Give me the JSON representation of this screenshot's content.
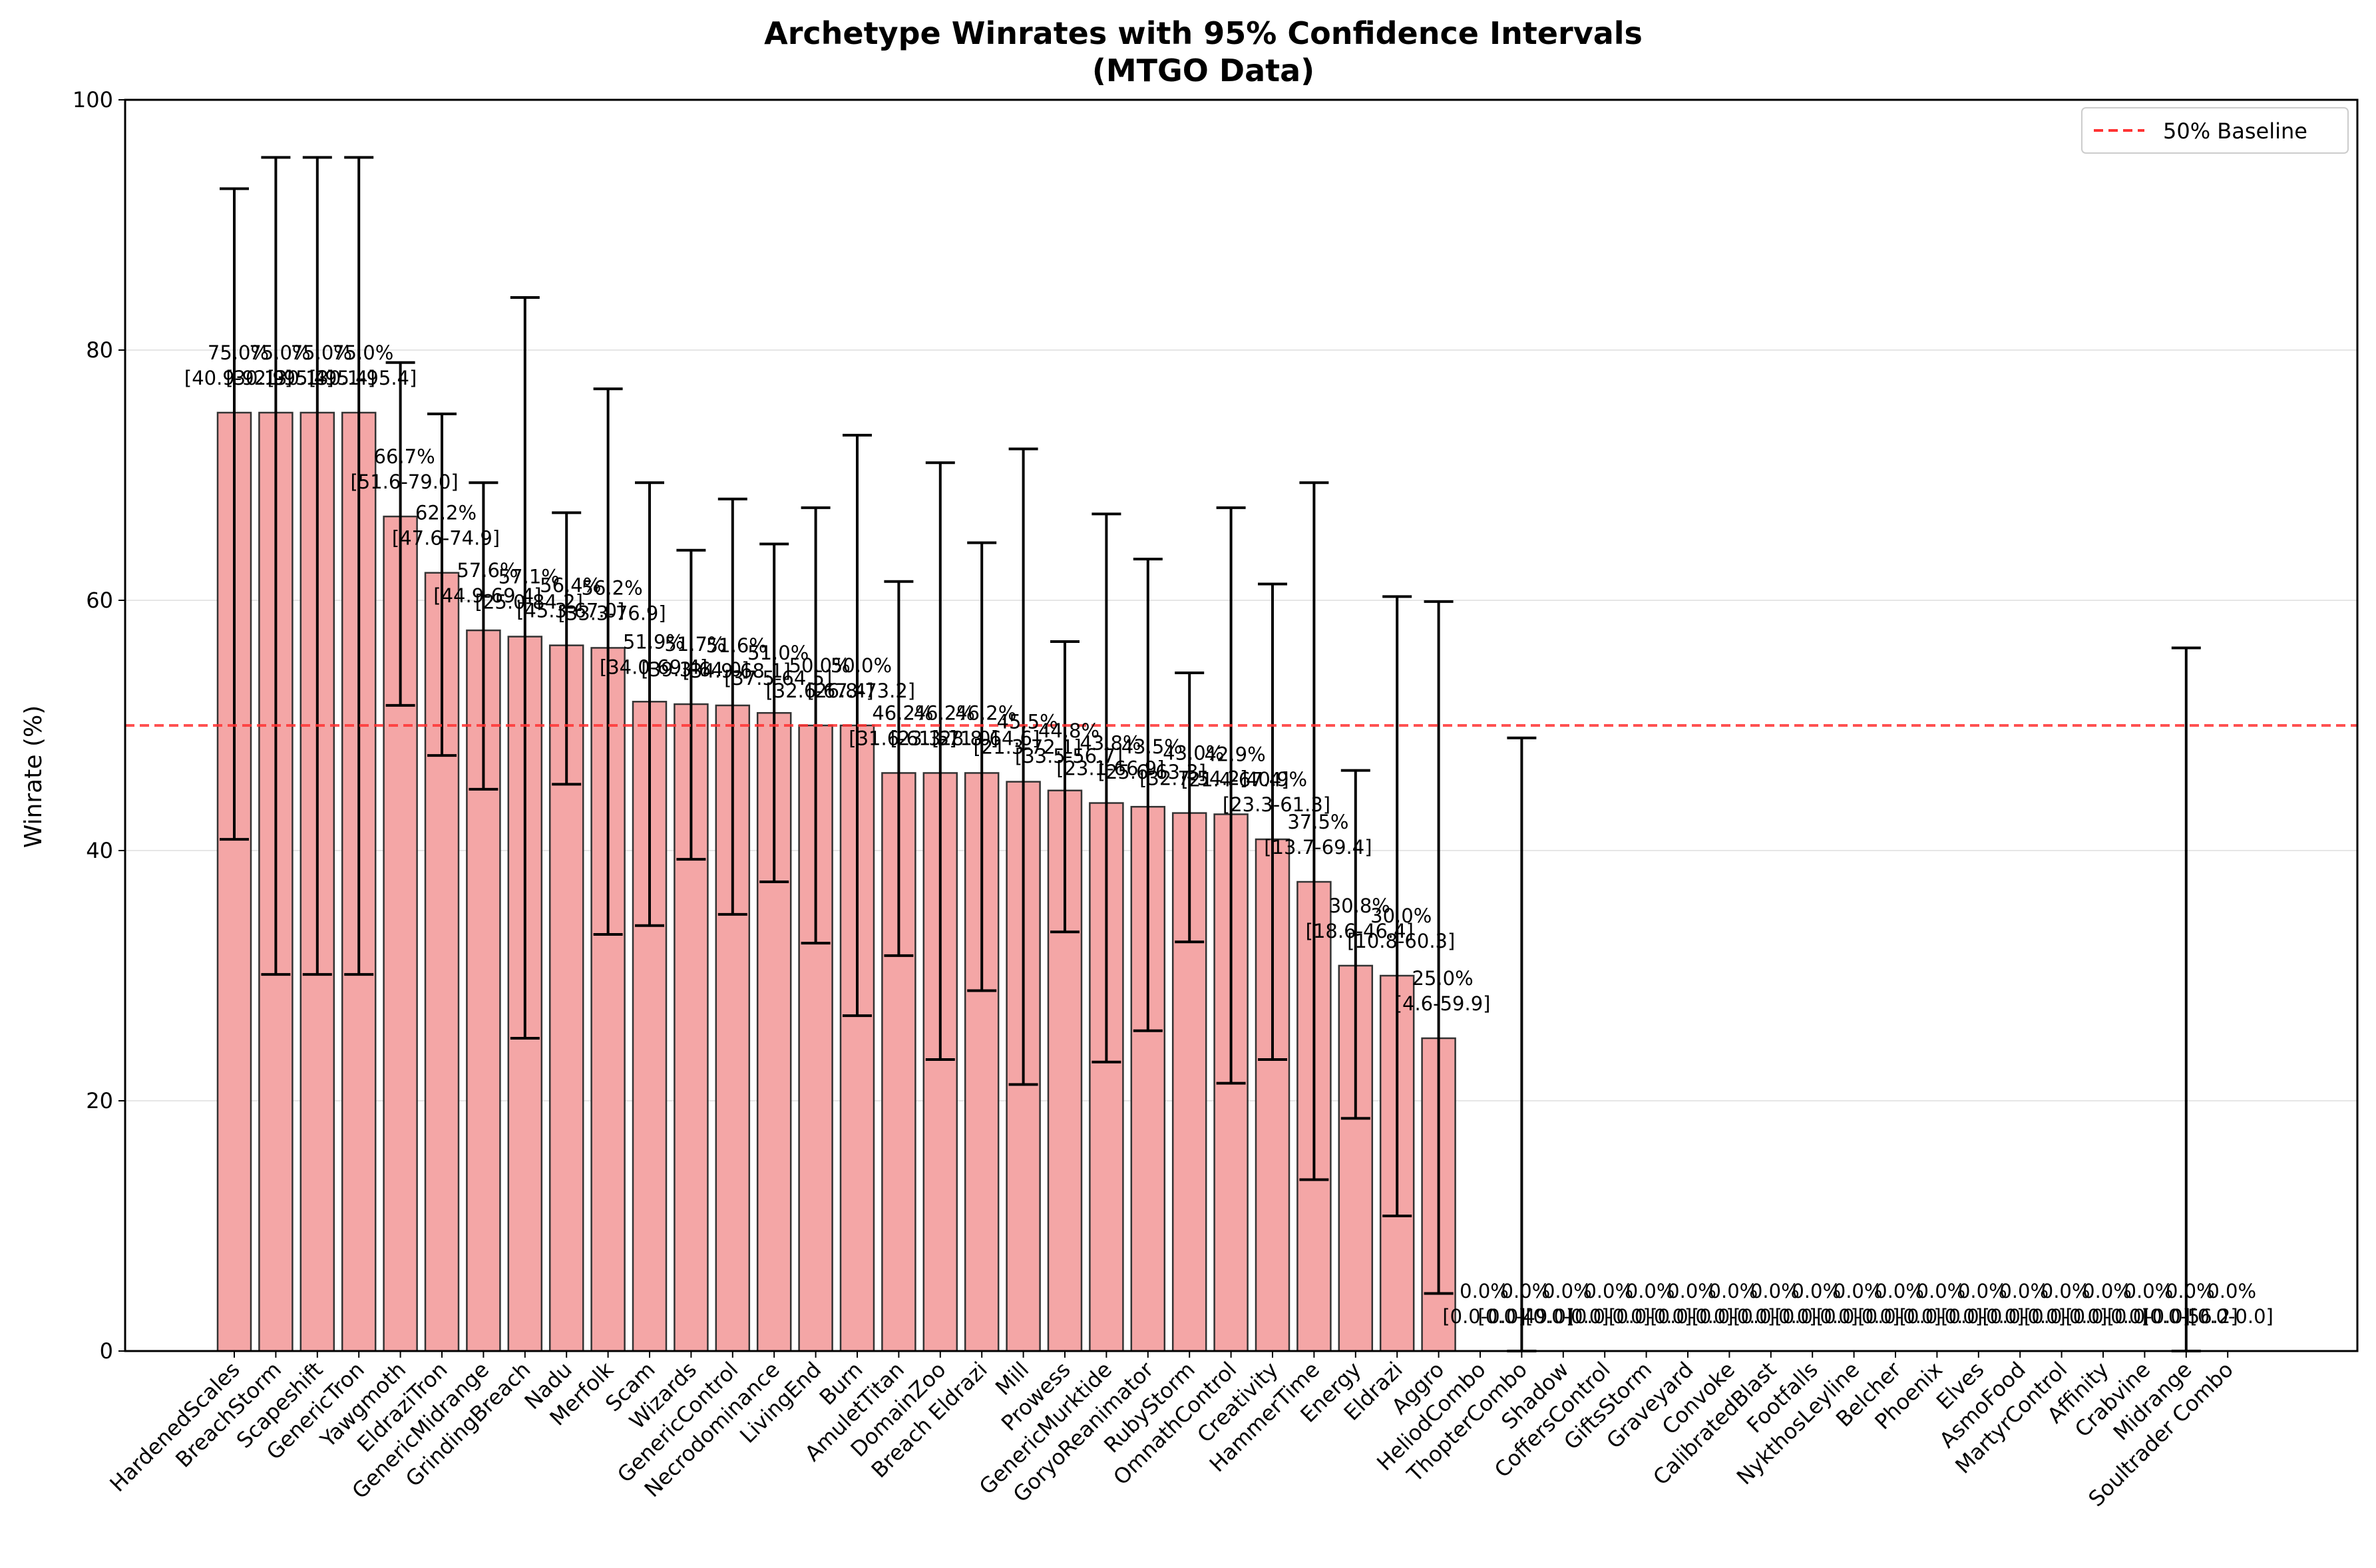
{
  "chart_data": {
    "type": "bar",
    "title": "Archetype Winrates with 95% Confidence Intervals",
    "subtitle": "(MTGO Data)",
    "xlabel": "",
    "ylabel": "Winrate (%)",
    "ylim": [
      0,
      100
    ],
    "yticks": [
      "0",
      "20",
      "40",
      "60",
      "80",
      "100"
    ],
    "grid": "horizontal",
    "legend_position": "top-right",
    "baseline": {
      "value": 50,
      "label": "50% Baseline",
      "color": "#ff3333",
      "style": "dashed"
    },
    "colors": {
      "bar_fill": "#f4a6a6",
      "bar_edge": "#333333",
      "error_bar": "#000000",
      "grid": "#e6e6e6"
    },
    "categories": [
      "HardenedScales",
      "BreachStorm",
      "Scapeshift",
      "GenericTron",
      "Yawgmoth",
      "EldraziTron",
      "GenericMidrange",
      "GrindingBreach",
      "Nadu",
      "Merfolk",
      "Scam",
      "Wizards",
      "GenericControl",
      "Necrodominance",
      "LivingEnd",
      "Burn",
      "AmuletTitan",
      "DomainZoo",
      "Breach Eldrazi",
      "Mill",
      "Prowess",
      "GenericMurktide",
      "GoryoReanimator",
      "RubyStorm",
      "OmnathControl",
      "Creativity",
      "HammerTime",
      "Energy",
      "Eldrazi",
      "Aggro",
      "HeliodCombo",
      "ThopterCombo",
      "Shadow",
      "CoffersControl",
      "GiftsStorm",
      "Graveyard",
      "Convoke",
      "CalibratedBlast",
      "Footfalls",
      "NykthosLeyline",
      "Belcher",
      "Phoenix",
      "Elves",
      "AsmoFood",
      "MartyrControl",
      "Affinity",
      "Crabvine",
      "Midrange",
      "Soultrader Combo"
    ],
    "values": [
      75.0,
      75.0,
      75.0,
      75.0,
      66.7,
      62.2,
      57.6,
      57.1,
      56.4,
      56.2,
      51.9,
      51.7,
      51.6,
      51.0,
      50.0,
      50.0,
      46.2,
      46.2,
      46.2,
      45.5,
      44.8,
      43.8,
      43.5,
      43.0,
      42.9,
      40.9,
      37.5,
      30.8,
      30.0,
      25.0,
      0.0,
      0.0,
      0.0,
      0.0,
      0.0,
      0.0,
      0.0,
      0.0,
      0.0,
      0.0,
      0.0,
      0.0,
      0.0,
      0.0,
      0.0,
      0.0,
      0.0,
      0.0,
      0.0
    ],
    "ci_low": [
      40.9,
      30.1,
      30.1,
      30.1,
      51.6,
      47.6,
      44.9,
      25.0,
      45.3,
      33.3,
      34.0,
      39.3,
      34.9,
      37.5,
      32.6,
      26.8,
      31.6,
      23.3,
      28.8,
      21.3,
      33.5,
      23.1,
      25.6,
      32.7,
      21.4,
      23.3,
      13.7,
      18.6,
      10.8,
      4.6,
      0.0,
      0.0,
      0.0,
      0.0,
      0.0,
      0.0,
      0.0,
      0.0,
      0.0,
      0.0,
      0.0,
      0.0,
      0.0,
      0.0,
      0.0,
      0.0,
      0.0,
      0.0,
      0.0
    ],
    "ci_high": [
      92.9,
      95.4,
      95.4,
      95.4,
      79.0,
      74.9,
      69.4,
      84.2,
      67.0,
      76.9,
      69.4,
      64.0,
      68.1,
      64.5,
      67.4,
      73.2,
      61.5,
      71.0,
      64.6,
      72.1,
      56.7,
      66.9,
      63.3,
      54.2,
      67.4,
      61.3,
      69.4,
      46.4,
      60.3,
      59.9,
      0.0,
      49.0,
      0.0,
      0.0,
      0.0,
      0.0,
      0.0,
      0.0,
      0.0,
      0.0,
      0.0,
      0.0,
      0.0,
      0.0,
      0.0,
      0.0,
      0.0,
      56.2,
      0.0
    ],
    "value_labels": [
      "75.0%",
      "75.0%",
      "75.0%",
      "75.0%",
      "66.7%",
      "62.2%",
      "57.6%",
      "57.1%",
      "56.4%",
      "56.2%",
      "51.9%",
      "51.7%",
      "51.6%",
      "51.0%",
      "50.0%",
      "50.0%",
      "46.2%",
      "46.2%",
      "46.2%",
      "45.5%",
      "44.8%",
      "43.8%",
      "43.5%",
      "43.0%",
      "42.9%",
      "40.9%",
      "37.5%",
      "30.8%",
      "30.0%",
      "25.0%",
      "0.0%",
      "0.0%",
      "0.0%",
      "0.0%",
      "0.0%",
      "0.0%",
      "0.0%",
      "0.0%",
      "0.0%",
      "0.0%",
      "0.0%",
      "0.0%",
      "0.0%",
      "0.0%",
      "0.0%",
      "0.0%",
      "0.0%",
      "0.0%",
      "0.0%"
    ],
    "ci_labels": [
      "[40.9-92.9]",
      "[30.1-95.4]",
      "[30.1-95.4]",
      "[30.1-95.4]",
      "[51.6-79.0]",
      "[47.6-74.9]",
      "[44.9-69.4]",
      "[25.0-84.2]",
      "[45.3-67.0]",
      "[33.3-76.9]",
      "[34.0-69.4]",
      "[39.3-64.0]",
      "[34.9-68.1]",
      "[37.5-64.5]",
      "[32.6-67.4]",
      "[26.8-73.2]",
      "[31.6-61.5]",
      "[23.3-71.0]",
      "[28.8-64.6]",
      "[21.3-72.1]",
      "[33.5-56.7]",
      "[23.1-66.9]",
      "[25.6-63.3]",
      "[32.7-54.2]",
      "[21.4-67.4]",
      "[23.3-61.3]",
      "[13.7-69.4]",
      "[18.6-46.4]",
      "[10.8-60.3]",
      "[4.6-59.9]",
      "[0.0-0.0]",
      "[0.0-49.0]",
      "[0.0-0.0]",
      "[0.0-0.0]",
      "[0.0-0.0]",
      "[0.0-0.0]",
      "[0.0-0.0]",
      "[0.0-0.0]",
      "[0.0-0.0]",
      "[0.0-0.0]",
      "[0.0-0.0]",
      "[0.0-0.0]",
      "[0.0-0.0]",
      "[0.0-0.0]",
      "[0.0-0.0]",
      "[0.0-0.0]",
      "[0.0-0.0]",
      "[0.0-56.2]",
      "[0.0-0.0]"
    ]
  }
}
